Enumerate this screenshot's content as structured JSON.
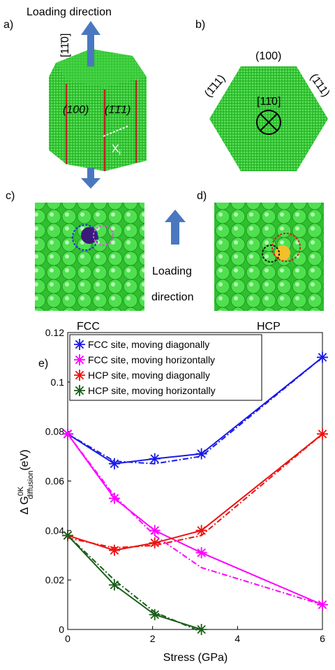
{
  "panels": {
    "a": {
      "label": "a)",
      "loading": "Loading direction",
      "axis": "[11̄0]",
      "face1": "(100)",
      "face2": "(1̄1̄1)",
      "xi": "X",
      "xi_sub": "i"
    },
    "b": {
      "label": "b)",
      "top": "(100)",
      "left": "(1̄11)",
      "right": "(1̄11)",
      "axis": "[11̄0]"
    },
    "c": {
      "label": "c)",
      "caption": "FCC"
    },
    "d": {
      "label": "d)",
      "caption": "HCP"
    },
    "loading1": "Loading",
    "loading2": "direction"
  },
  "chart_data": {
    "type": "line",
    "panel_label": "e)",
    "xlabel": "Stress (GPa)",
    "ylabel": {
      "main": "Δ G",
      "sup": "0K",
      "sub": "diffusion",
      "unit": "(eV)"
    },
    "x": [
      0,
      1.1,
      2.05,
      3.15,
      6
    ],
    "xlim": [
      0,
      6
    ],
    "xticks": [
      0,
      2,
      4,
      6
    ],
    "ylim": [
      0,
      0.12
    ],
    "yticks": [
      0,
      0.02,
      0.04,
      0.06,
      0.08,
      0.1,
      0.12
    ],
    "legend": "upper left",
    "series": [
      {
        "name": "FCC site, moving diagonally",
        "color": "#1a1ae6",
        "values": [
          0.079,
          0.067,
          0.069,
          0.071,
          0.11
        ],
        "fit": [
          0.079,
          0.068,
          0.067,
          0.07,
          0.11
        ]
      },
      {
        "name": "FCC site, moving horizontally",
        "color": "#ff00ff",
        "values": [
          0.079,
          0.053,
          0.04,
          0.031,
          0.01
        ],
        "fit": [
          0.079,
          0.054,
          0.038,
          0.025,
          0.01
        ]
      },
      {
        "name": "HCP site, moving diagonally",
        "color": "#ee1111",
        "values": [
          0.038,
          0.032,
          0.035,
          0.04,
          0.079
        ],
        "fit": [
          0.037,
          0.033,
          0.034,
          0.038,
          0.079
        ]
      },
      {
        "name": "HCP site, moving horizontally",
        "color": "#1a5e1a",
        "values": [
          0.038,
          0.018,
          0.006,
          0,
          null
        ],
        "fit": [
          0.038,
          0.02,
          0.007,
          -0.001,
          null
        ]
      }
    ]
  }
}
